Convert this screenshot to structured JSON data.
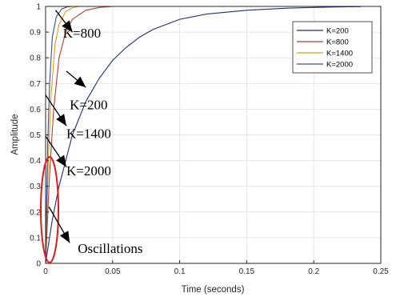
{
  "chart_data": {
    "type": "line",
    "xlabel": "Time (seconds)",
    "ylabel": "Amplitude",
    "xlim": [
      0,
      0.25
    ],
    "ylim": [
      0,
      1
    ],
    "grid": true,
    "legend_position": "top-right",
    "x_ticks": [
      {
        "value": 0,
        "label": "0"
      },
      {
        "value": 0.05,
        "label": "0.05"
      },
      {
        "value": 0.1,
        "label": "0.1"
      },
      {
        "value": 0.15,
        "label": "0.15"
      },
      {
        "value": 0.2,
        "label": "0.2"
      },
      {
        "value": 0.25,
        "label": "0.25"
      }
    ],
    "y_ticks": [
      {
        "value": 0,
        "label": "0"
      },
      {
        "value": 0.1,
        "label": "0.1"
      },
      {
        "value": 0.2,
        "label": "0.2"
      },
      {
        "value": 0.3,
        "label": "0.3"
      },
      {
        "value": 0.4,
        "label": "0.4"
      },
      {
        "value": 0.5,
        "label": "0.5"
      },
      {
        "value": 0.6,
        "label": "0.6"
      },
      {
        "value": 0.7,
        "label": "0.7"
      },
      {
        "value": 0.8,
        "label": "0.8"
      },
      {
        "value": 0.9,
        "label": "0.9"
      },
      {
        "value": 1,
        "label": "1"
      }
    ],
    "series": [
      {
        "name": "K=200",
        "color": "#1f2d7a",
        "x": [
          0,
          0.005,
          0.01,
          0.02,
          0.03,
          0.04,
          0.05,
          0.06,
          0.07,
          0.08,
          0.1,
          0.12,
          0.15,
          0.18,
          0.2,
          0.22,
          0.235
        ],
        "y": [
          0,
          0.17,
          0.3,
          0.5,
          0.63,
          0.72,
          0.79,
          0.84,
          0.88,
          0.91,
          0.95,
          0.97,
          0.985,
          0.993,
          0.996,
          0.998,
          0.999
        ]
      },
      {
        "name": "K=800",
        "color": "#c0392b",
        "x": [
          0,
          0.003,
          0.006,
          0.01,
          0.015,
          0.02,
          0.03,
          0.04,
          0.05
        ],
        "y": [
          0,
          0.35,
          0.6,
          0.8,
          0.9,
          0.95,
          0.985,
          0.996,
          1.0
        ]
      },
      {
        "name": "K=1400",
        "color": "#d4a017",
        "x": [
          0,
          0.002,
          0.004,
          0.007,
          0.01,
          0.015,
          0.02,
          0.025
        ],
        "y": [
          0,
          0.4,
          0.65,
          0.85,
          0.93,
          0.98,
          0.995,
          1.0
        ]
      },
      {
        "name": "K=2000",
        "color": "#3b4a9a",
        "x": [
          0,
          0.0015,
          0.003,
          0.005,
          0.008,
          0.012,
          0.016,
          0.02
        ],
        "y": [
          0,
          0.45,
          0.7,
          0.88,
          0.96,
          0.99,
          0.998,
          1.0
        ]
      }
    ],
    "annotations": [
      {
        "text": "K=800",
        "x": 0.013,
        "y": 0.879,
        "arrow_from": [
          0.0075,
          0.985
        ],
        "arrow_to": [
          0.02,
          0.9
        ]
      },
      {
        "text": "K=200",
        "x": 0.018,
        "y": 0.6,
        "arrow_from": [
          0.0155,
          0.748
        ],
        "arrow_to": [
          0.03,
          0.685
        ]
      },
      {
        "text": "K=1400",
        "x": 0.0155,
        "y": 0.487,
        "arrow_from": [
          0.0,
          0.655
        ],
        "arrow_to": [
          0.0155,
          0.535
        ]
      },
      {
        "text": "K=2000",
        "x": 0.0155,
        "y": 0.343,
        "arrow_from": [
          0.0,
          0.495
        ],
        "arrow_to": [
          0.0155,
          0.375
        ]
      },
      {
        "text": "Oscillations",
        "x": 0.024,
        "y": 0.04,
        "arrow_from": [
          0.0025,
          0.22
        ],
        "arrow_to": [
          0.018,
          0.08
        ]
      }
    ]
  }
}
